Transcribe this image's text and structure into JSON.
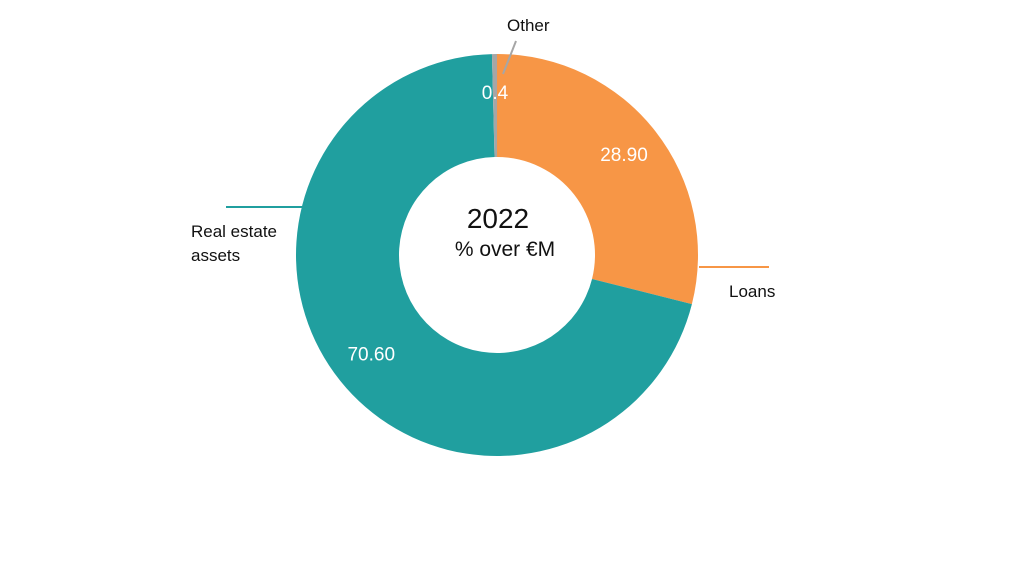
{
  "chart_data": {
    "type": "pie",
    "title": "2022",
    "subtitle": "% over €M",
    "slices": [
      {
        "label": "Loans",
        "value": 28.9,
        "value_label": "28.90",
        "color": "#F79646"
      },
      {
        "label": "Real estate assets",
        "value": 70.6,
        "value_label": "70.60",
        "color": "#209F9F"
      },
      {
        "label": "Other",
        "value": 0.4,
        "value_label": "0.4",
        "color": "#A6A6A6"
      }
    ],
    "legend": "callout labels"
  }
}
